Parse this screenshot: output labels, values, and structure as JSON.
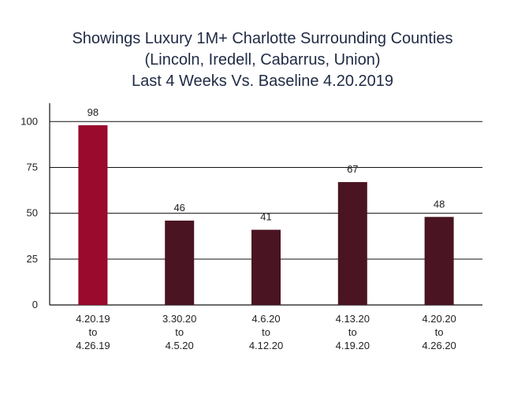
{
  "title": {
    "line1": "Showings Luxury 1M+ Charlotte Surrounding Counties",
    "line2": "(Lincoln, Iredell, Cabarrus, Union)",
    "line3": "Last 4 Weeks Vs. Baseline 4.20.2019"
  },
  "chart_data": {
    "type": "bar",
    "categories": [
      [
        "4.20.19",
        "to",
        "4.26.19"
      ],
      [
        "3.30.20",
        "to",
        "4.5.20"
      ],
      [
        "4.6.20",
        "to",
        "4.12.20"
      ],
      [
        "4.13.20",
        "to",
        "4.19.20"
      ],
      [
        "4.20.20",
        "to",
        "4.26.20"
      ]
    ],
    "values": [
      98,
      46,
      41,
      67,
      48
    ],
    "bar_colors": [
      "#990a2c",
      "#4a1422",
      "#4a1422",
      "#4a1422",
      "#4a1422"
    ],
    "yticks": [
      0,
      25,
      50,
      75,
      100
    ],
    "ylim": [
      0,
      110
    ],
    "grid": true,
    "data_labels": true
  }
}
